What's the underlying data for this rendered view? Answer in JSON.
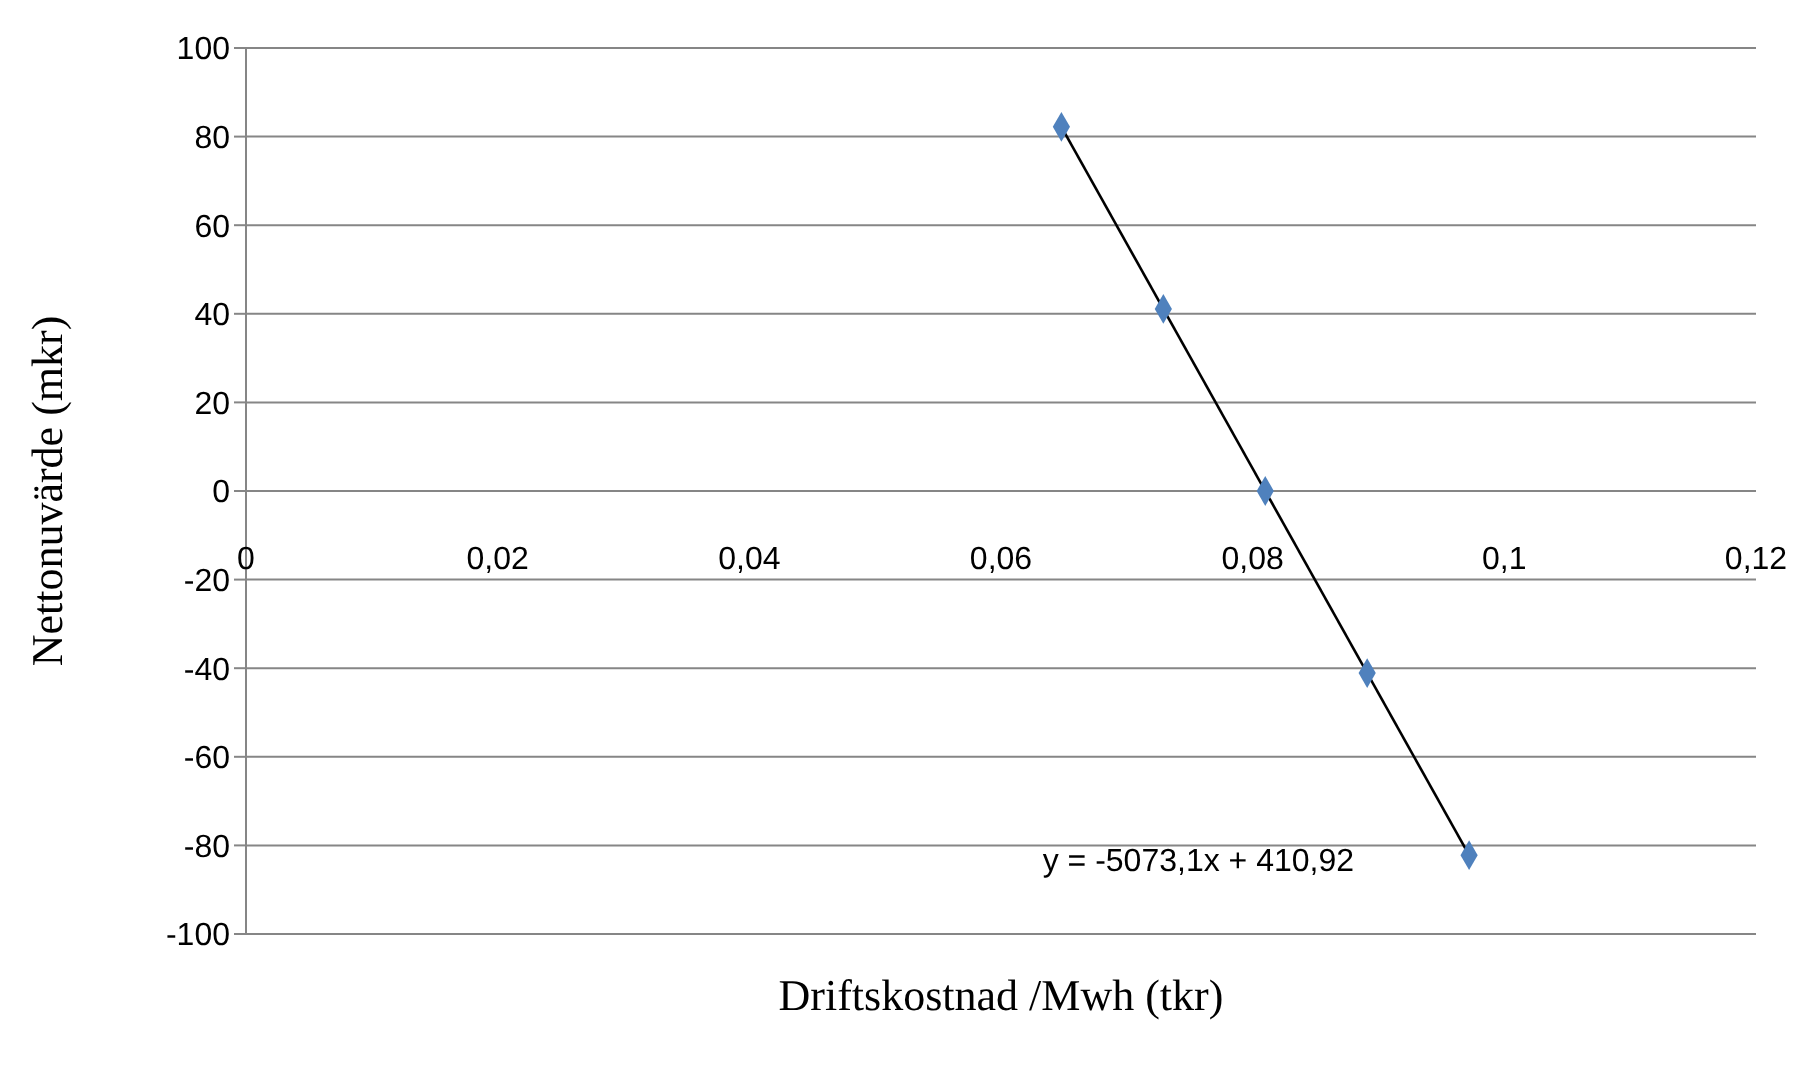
{
  "chart_data": {
    "type": "scatter",
    "xlabel": "Driftskostnad /Mwh (tkr)",
    "ylabel": "Nettonuvärde (mkr)",
    "series": [
      {
        "color": "#4f81bd",
        "marker": "diamond",
        "x": [
          0.0648,
          0.0729,
          0.081,
          0.0891,
          0.0972
        ],
        "values": [
          82.2,
          41.1,
          0,
          -41.1,
          -82.2
        ]
      },
      {
        "type": "line",
        "color": "#000000",
        "marker": "none",
        "x": [
          0.0648,
          0.0972
        ],
        "values": [
          82.2,
          -82.2
        ]
      }
    ],
    "xlim": [
      0,
      0.12
    ],
    "xticks": [
      0,
      {
        "value": 0.02,
        "label": "0,02"
      },
      {
        "value": 0.04,
        "label": "0,04"
      },
      {
        "value": 0.06,
        "label": "0,06"
      },
      {
        "value": 0.08,
        "label": "0,08"
      },
      {
        "value": 0.1,
        "label": "0,1"
      },
      {
        "value": 0.12,
        "label": "0,12"
      }
    ],
    "ylim": [
      -100,
      100
    ],
    "yticks": [
      -100,
      -80,
      -60,
      -40,
      -20,
      0,
      20,
      40,
      60,
      80,
      100
    ],
    "grid": "y",
    "annotations": [
      "y = -5073,1x + 410,92"
    ]
  }
}
